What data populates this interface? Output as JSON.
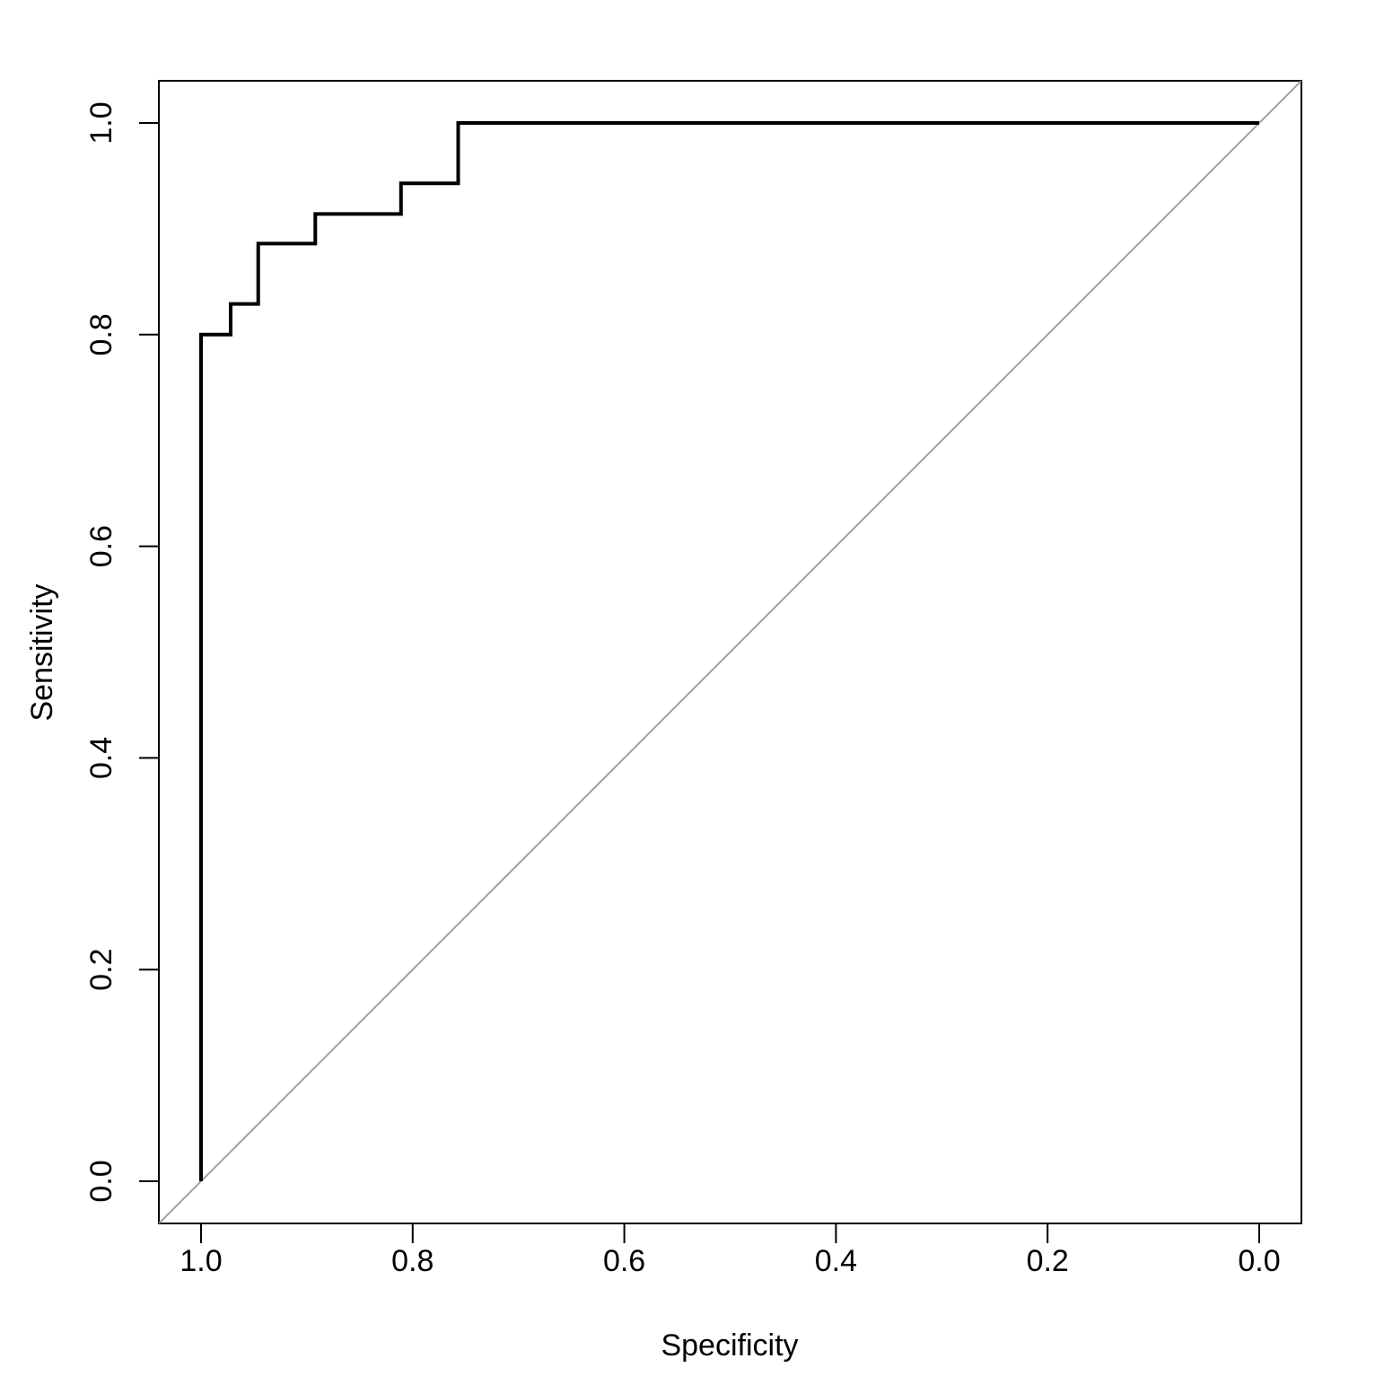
{
  "chart_data": {
    "type": "line",
    "title": "",
    "xlabel": "Specificity",
    "ylabel": "Sensitivity",
    "x_reversed": true,
    "xlim": [
      1.0,
      0.0
    ],
    "ylim": [
      0.0,
      1.0
    ],
    "x_ticks": [
      1.0,
      0.8,
      0.6,
      0.4,
      0.2,
      0.0
    ],
    "x_tick_labels": [
      "1.0",
      "0.8",
      "0.6",
      "0.4",
      "0.2",
      "0.0"
    ],
    "y_ticks": [
      0.0,
      0.2,
      0.4,
      0.6,
      0.8,
      1.0
    ],
    "y_tick_labels": [
      "0.0",
      "0.2",
      "0.4",
      "0.6",
      "0.8",
      "1.0"
    ],
    "grid": false,
    "legend": "none",
    "series": [
      {
        "color": "#000000",
        "step": true,
        "x": [
          1.0,
          1.0,
          0.972,
          0.972,
          0.946,
          0.946,
          0.892,
          0.892,
          0.811,
          0.811,
          0.757,
          0.757,
          0.0
        ],
        "y": [
          0.0,
          0.8,
          0.8,
          0.829,
          0.829,
          0.886,
          0.886,
          0.914,
          0.914,
          0.943,
          0.943,
          1.0,
          1.0
        ]
      }
    ],
    "reference_line": {
      "color": "#a0a0a0",
      "x": [
        1.0,
        0.0
      ],
      "y": [
        0.0,
        1.0
      ]
    }
  }
}
